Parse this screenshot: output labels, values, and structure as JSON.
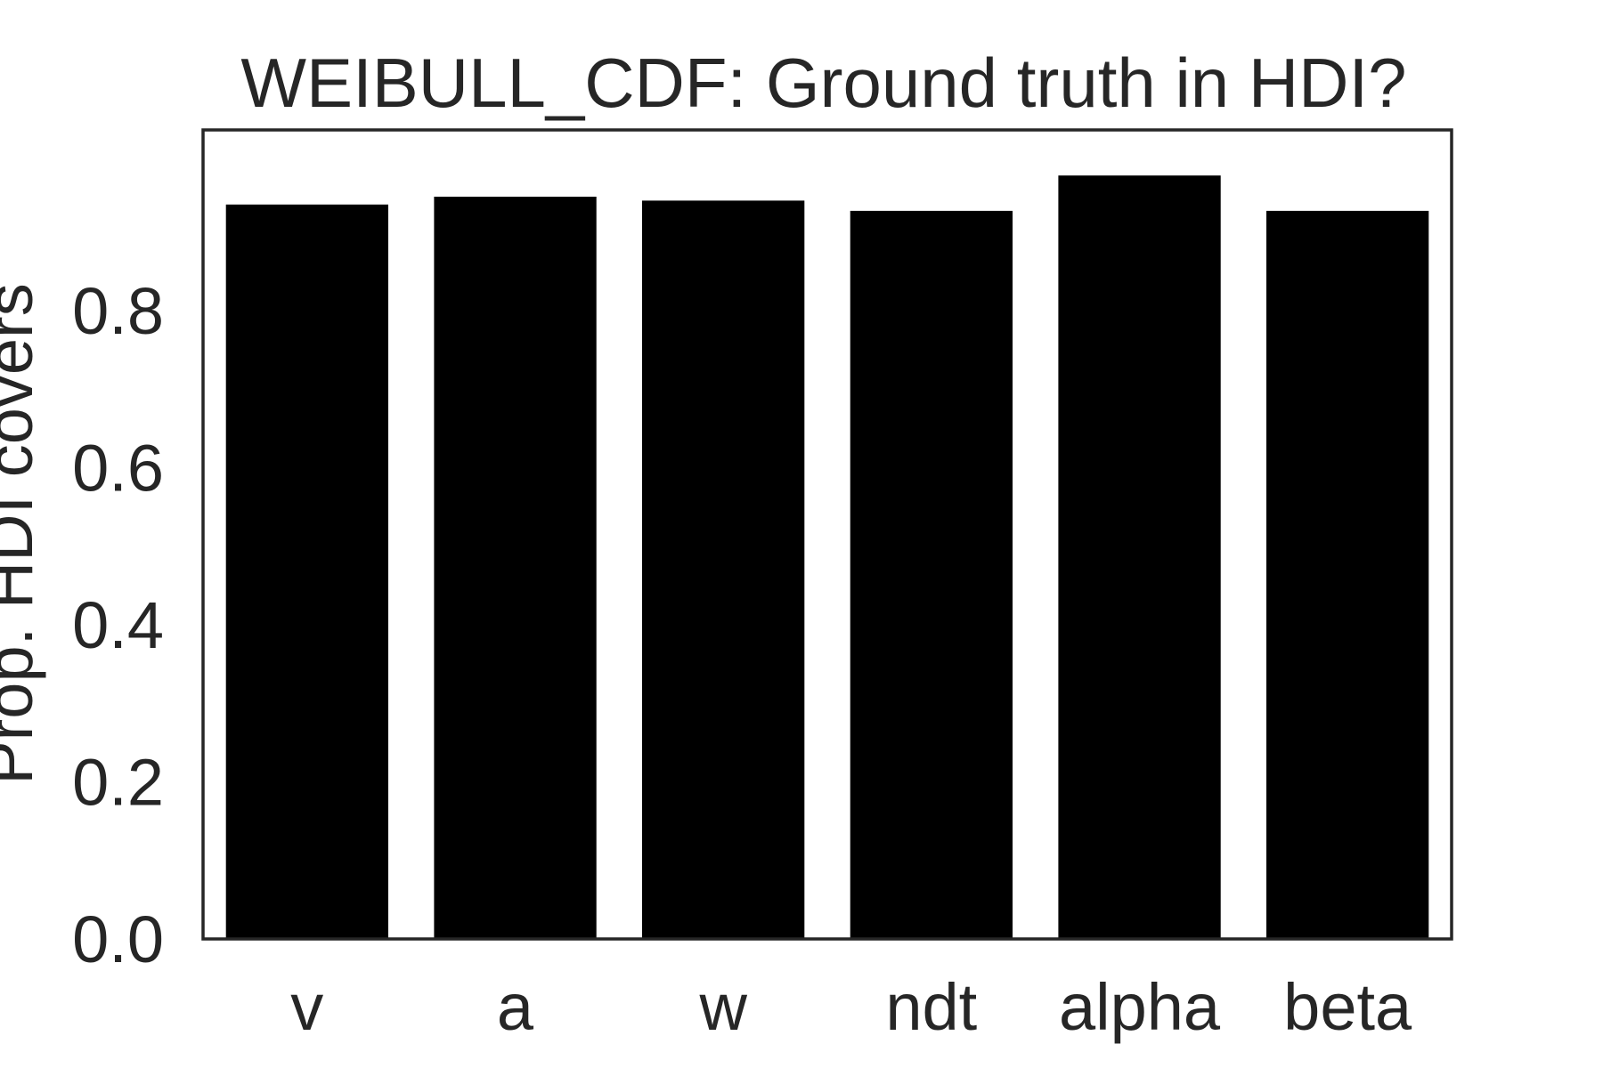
{
  "chart_data": {
    "type": "bar",
    "title": "WEIBULL_CDF: Ground truth in HDI?",
    "xlabel": "",
    "ylabel": "Prop. HDI covers",
    "categories": [
      "v",
      "a",
      "w",
      "ndt",
      "alpha",
      "beta"
    ],
    "values": [
      0.935,
      0.945,
      0.94,
      0.927,
      0.972,
      0.927
    ],
    "ylim": [
      0,
      1.03
    ],
    "yticks": [
      0.0,
      0.2,
      0.4,
      0.6,
      0.8
    ],
    "ytick_labels": [
      "0.0",
      "0.2",
      "0.4",
      "0.6",
      "0.8"
    ],
    "grid": false,
    "legend": "none",
    "colors": {
      "bar": "#000000",
      "frame": "#262626",
      "text": "#262626",
      "background": "#ffffff"
    }
  }
}
